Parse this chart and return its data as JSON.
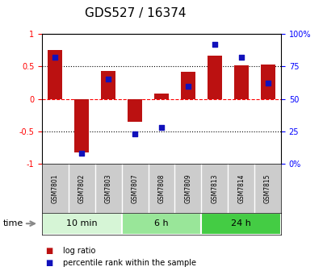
{
  "title": "GDS527 / 16374",
  "samples": [
    "GSM7801",
    "GSM7802",
    "GSM7803",
    "GSM7807",
    "GSM7808",
    "GSM7809",
    "GSM7813",
    "GSM7814",
    "GSM7815"
  ],
  "log_ratio": [
    0.75,
    -0.82,
    0.43,
    -0.35,
    0.08,
    0.42,
    0.67,
    0.52,
    0.53
  ],
  "percentile_pct": [
    82,
    8,
    65,
    23,
    28,
    60,
    92,
    82,
    62
  ],
  "groups": [
    {
      "label": "10 min",
      "start": 0,
      "end": 3,
      "color": "#d6f5d6"
    },
    {
      "label": "6 h",
      "start": 3,
      "end": 6,
      "color": "#99e699"
    },
    {
      "label": "24 h",
      "start": 6,
      "end": 9,
      "color": "#44cc44"
    }
  ],
  "bar_color": "#bb1111",
  "dot_color": "#1111bb",
  "bar_width": 0.55,
  "ylim_left": [
    -1.0,
    1.0
  ],
  "ylim_right": [
    0,
    100
  ],
  "yticks_left": [
    -1.0,
    -0.5,
    0.0,
    0.5,
    1.0
  ],
  "ytick_labels_left": [
    "-1",
    "-0.5",
    "0",
    "0.5",
    "1"
  ],
  "yticks_right": [
    0,
    25,
    50,
    75,
    100
  ],
  "ytick_labels_right": [
    "0%",
    "25",
    "50",
    "75",
    "100%"
  ],
  "hlines": [
    -0.5,
    0.0,
    0.5
  ],
  "hline_colors": [
    "black",
    "red",
    "black"
  ],
  "hline_styles": [
    "dotted",
    "dashed",
    "dotted"
  ],
  "background_color": "#ffffff",
  "sample_bg_color": "#cccccc",
  "title_fontsize": 11,
  "legend_label_ratio": "log ratio",
  "legend_label_percentile": "percentile rank within the sample",
  "time_label": "time"
}
